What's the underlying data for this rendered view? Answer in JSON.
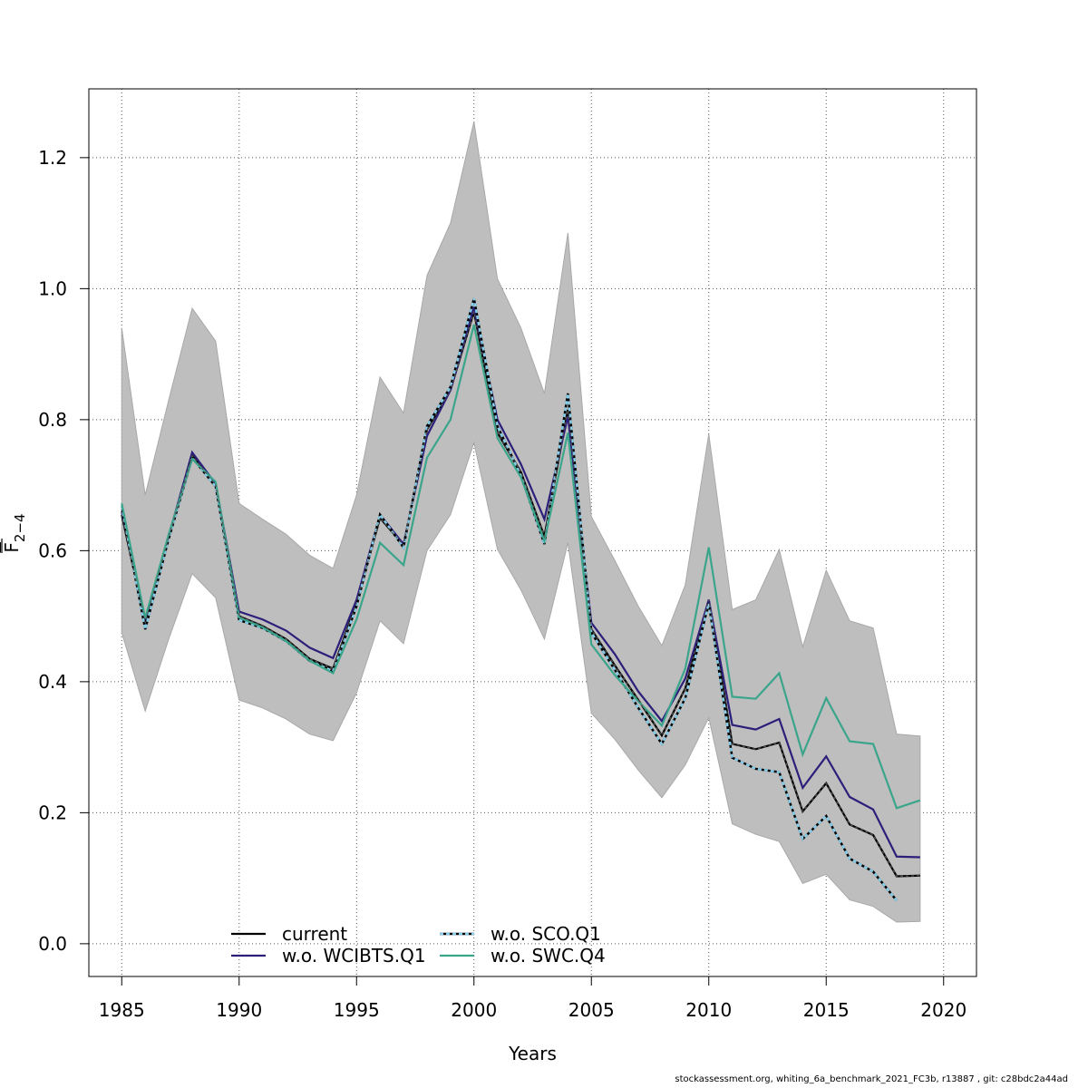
{
  "chart_data": {
    "type": "line",
    "title": "",
    "xlabel": "Years",
    "ylabel": "F",
    "ylabel_sub": "2−4",
    "xlim": [
      1983.6,
      2021.4
    ],
    "ylim": [
      -0.05,
      1.305
    ],
    "x_ticks": [
      1985,
      1990,
      1995,
      2000,
      2005,
      2010,
      2015,
      2020
    ],
    "y_ticks": [
      0.0,
      0.2,
      0.4,
      0.6,
      0.8,
      1.0,
      1.2
    ],
    "y_tick_labels": [
      "0.0",
      "0.2",
      "0.4",
      "0.6",
      "0.8",
      "1.0",
      "1.2"
    ],
    "grid": true,
    "legend_position": "bottom-left",
    "confidence_band": {
      "color": "#bebebe",
      "x": [
        1985,
        1986,
        1987,
        1988,
        1989,
        1990,
        1991,
        1992,
        1993,
        1994,
        1995,
        1996,
        1997,
        1998,
        1999,
        2000,
        2001,
        2002,
        2003,
        2004,
        2005,
        2006,
        2007,
        2008,
        2009,
        2010,
        2011,
        2012,
        2013,
        2014,
        2015,
        2016,
        2017,
        2018,
        2019
      ],
      "upper": [
        0.94,
        0.685,
        0.83,
        0.97,
        0.92,
        0.672,
        0.648,
        0.625,
        0.593,
        0.573,
        0.685,
        0.865,
        0.81,
        1.02,
        1.1,
        1.255,
        1.015,
        0.94,
        0.84,
        1.085,
        0.652,
        0.585,
        0.515,
        0.455,
        0.548,
        0.778,
        0.51,
        0.525,
        0.602,
        0.453,
        0.57,
        0.493,
        0.482,
        0.32,
        0.317
      ],
      "lower": [
        0.475,
        0.355,
        0.465,
        0.565,
        0.528,
        0.372,
        0.36,
        0.343,
        0.32,
        0.31,
        0.383,
        0.493,
        0.458,
        0.6,
        0.655,
        0.765,
        0.602,
        0.54,
        0.465,
        0.612,
        0.352,
        0.312,
        0.265,
        0.223,
        0.273,
        0.345,
        0.183,
        0.167,
        0.156,
        0.092,
        0.106,
        0.067,
        0.057,
        0.033,
        0.034
      ]
    },
    "x": [
      1985,
      1986,
      1987,
      1988,
      1989,
      1990,
      1991,
      1992,
      1993,
      1994,
      1995,
      1996,
      1997,
      1998,
      1999,
      2000,
      2001,
      2002,
      2003,
      2004,
      2005,
      2006,
      2007,
      2008,
      2009,
      2010,
      2011,
      2012,
      2013,
      2014,
      2015,
      2016,
      2017,
      2018,
      2019
    ],
    "series": [
      {
        "name": "current",
        "color": "#000000",
        "dash": "",
        "values": [
          0.655,
          0.49,
          0.62,
          0.745,
          0.7,
          0.5,
          0.485,
          0.465,
          0.435,
          0.42,
          0.52,
          0.65,
          0.608,
          0.785,
          0.845,
          0.965,
          0.78,
          0.72,
          0.622,
          0.815,
          0.48,
          0.425,
          0.372,
          0.318,
          0.39,
          0.525,
          0.305,
          0.297,
          0.307,
          0.202,
          0.245,
          0.182,
          0.166,
          0.103,
          0.104
        ]
      },
      {
        "name": "w.o. WCIBTS.Q1",
        "color": "#2c1f7a",
        "dash": "",
        "values": [
          0.66,
          0.495,
          0.622,
          0.75,
          0.702,
          0.507,
          0.495,
          0.478,
          0.452,
          0.436,
          0.525,
          0.655,
          0.61,
          0.775,
          0.845,
          0.972,
          0.8,
          0.732,
          0.648,
          0.805,
          0.49,
          0.442,
          0.385,
          0.34,
          0.405,
          0.525,
          0.334,
          0.327,
          0.343,
          0.238,
          0.286,
          0.224,
          0.205,
          0.133,
          0.132
        ]
      },
      {
        "name": "w.o. SCO.Q1",
        "color": "#87ceeb",
        "dash": "4 3",
        "values": [
          0.668,
          0.48,
          0.618,
          0.742,
          0.698,
          0.494,
          0.482,
          0.462,
          0.432,
          0.416,
          0.515,
          0.655,
          0.605,
          0.79,
          0.85,
          0.985,
          0.79,
          0.715,
          0.61,
          0.84,
          0.475,
          0.418,
          0.36,
          0.305,
          0.375,
          0.52,
          0.284,
          0.267,
          0.262,
          0.16,
          0.195,
          0.13,
          0.11,
          0.066,
          null
        ]
      },
      {
        "name": "w.o. SWC.Q4",
        "color": "#3aa58b",
        "dash": "",
        "values": [
          0.672,
          0.497,
          0.625,
          0.74,
          0.705,
          0.498,
          0.483,
          0.462,
          0.432,
          0.413,
          0.495,
          0.612,
          0.578,
          0.742,
          0.8,
          0.945,
          0.772,
          0.712,
          0.615,
          0.78,
          0.457,
          0.41,
          0.37,
          0.333,
          0.42,
          0.605,
          0.377,
          0.374,
          0.413,
          0.289,
          0.375,
          0.309,
          0.305,
          0.207,
          0.219
        ]
      }
    ]
  },
  "footer": "stockassessment.org, whiting_6a_benchmark_2021_FC3b, r13887 , git: c28bdc2a44ad"
}
